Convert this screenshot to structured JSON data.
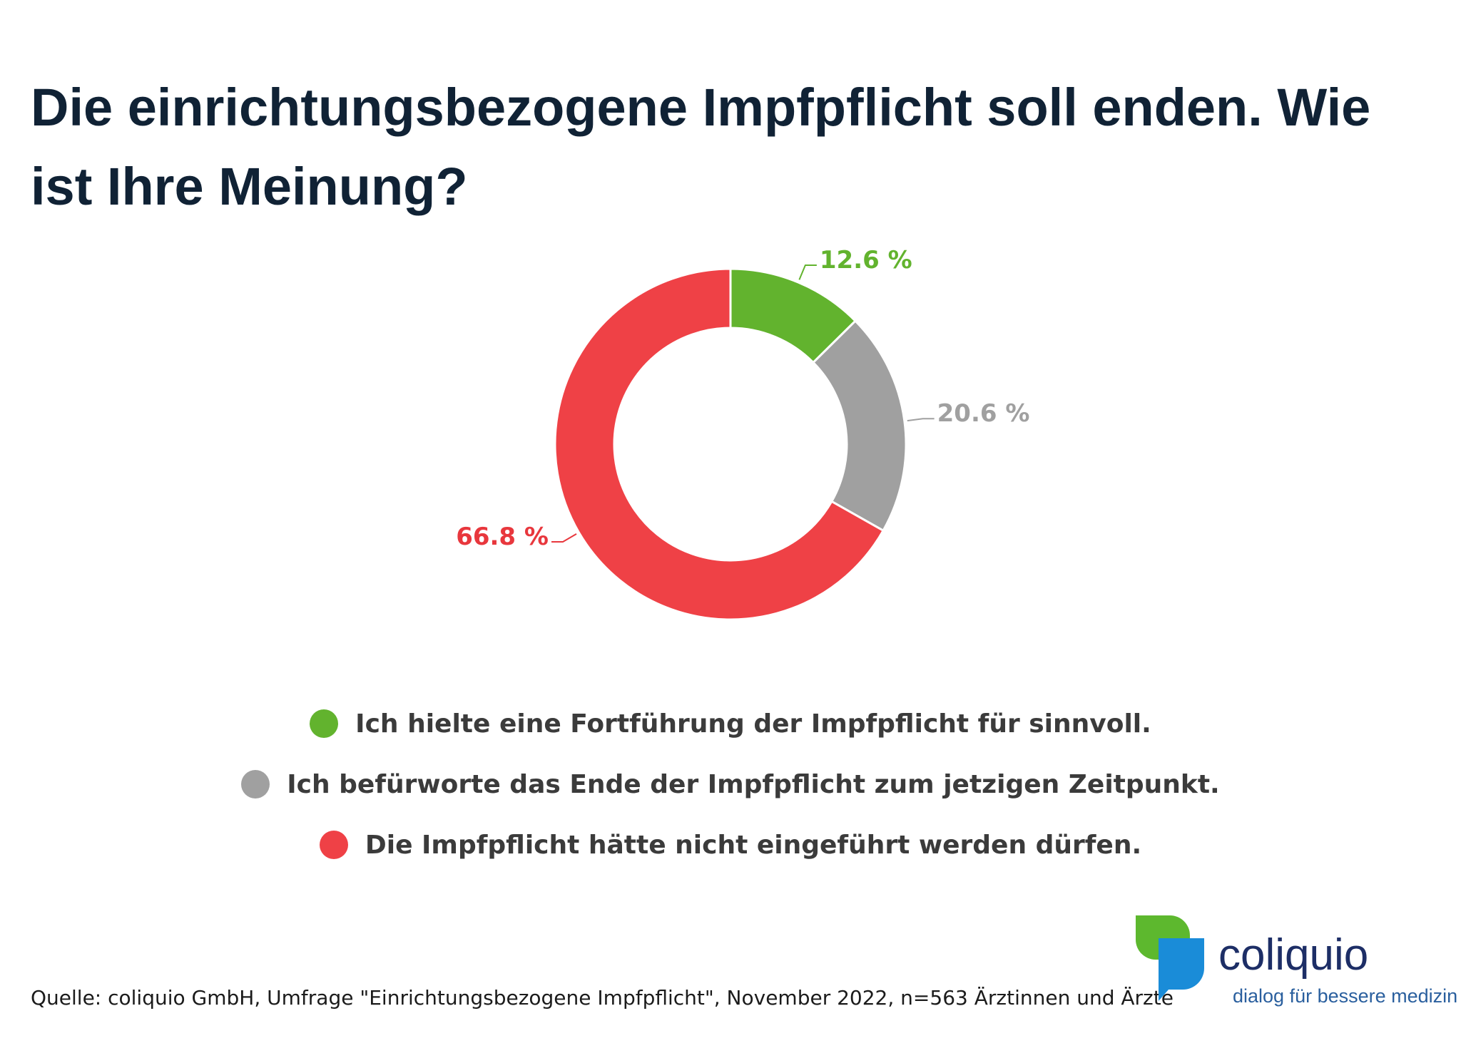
{
  "chart_data": {
    "type": "pie",
    "title": "Die einrichtungsbezogene Impfpflicht soll enden. Wie ist Ihre Meinung?",
    "categories": [
      "Ich hielte eine Fortführung der Impfpflicht für sinnvoll.",
      "Ich befürworte das Ende der Impfpflicht zum jetzigen Zeitpunkt.",
      "Die Impfpflicht hätte nicht eingeführt werden dürfen."
    ],
    "values": [
      12.6,
      20.6,
      66.8
    ],
    "data_labels": [
      "12.6 %",
      "20.6 %",
      "66.8 %"
    ],
    "colors": [
      "#62b32e",
      "#a0a0a0",
      "#ef4146"
    ],
    "label_colors": [
      "#62b32e",
      "#a0a0a0",
      "#e8373d"
    ],
    "legend_position": "bottom",
    "donut": true
  },
  "source": "Quelle: coliquio GmbH, Umfrage \"Einrichtungsbezogene Impfpflicht\", November 2022, n=563 Ärztinnen und Ärzte",
  "logo": {
    "name": "coliquio",
    "tagline": "dialog für bessere medizin",
    "colors": {
      "green": "#5db82e",
      "blue": "#1a8cd8",
      "navy": "#1d2e66"
    }
  }
}
